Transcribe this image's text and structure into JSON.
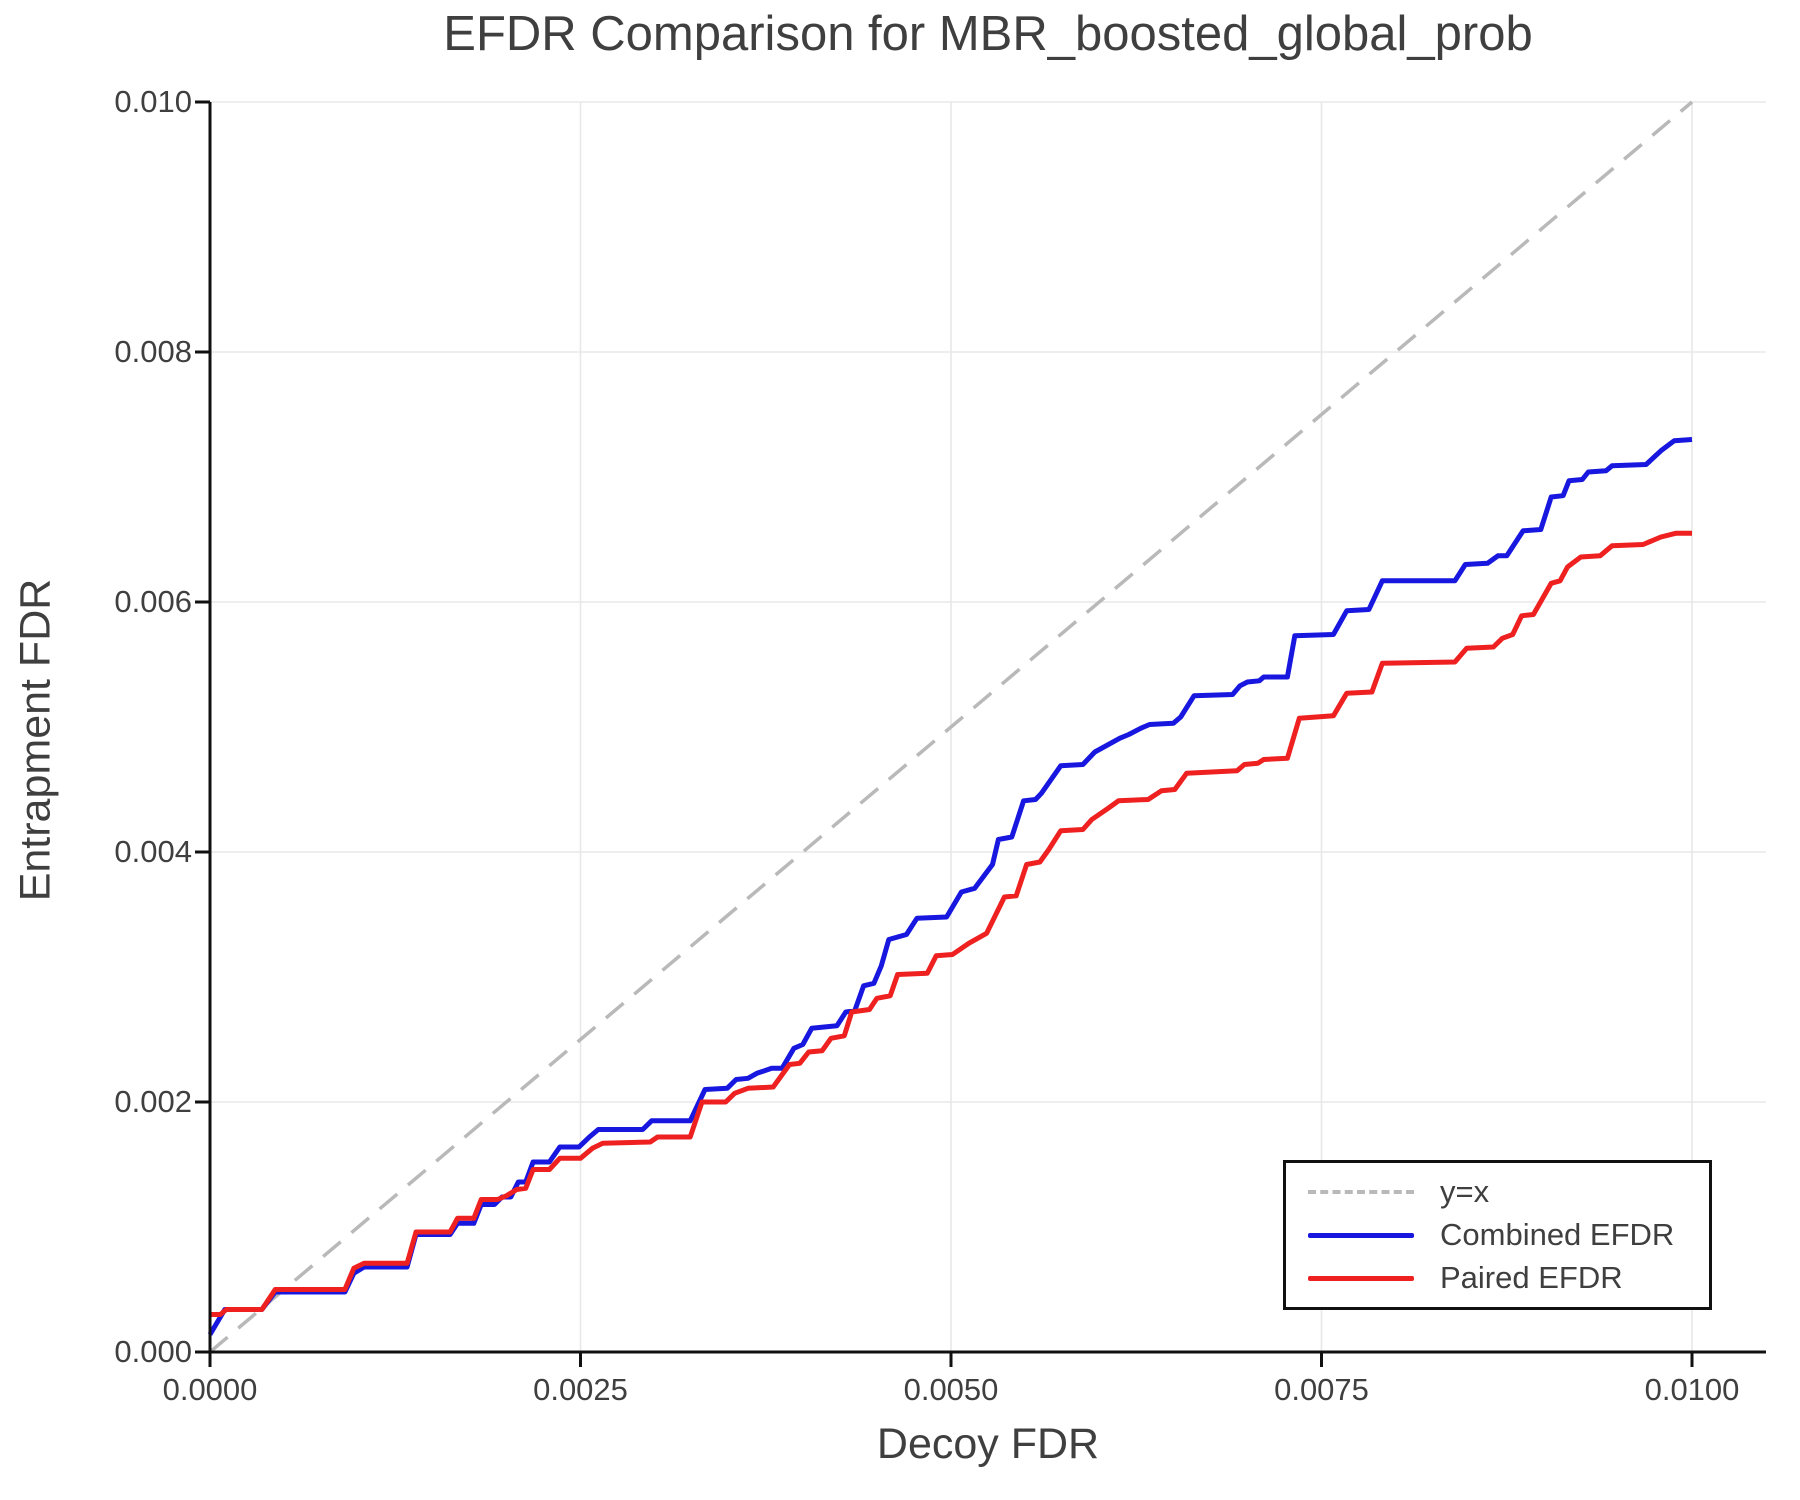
{
  "title": "EFDR Comparison for MBR_boosted_global_prob",
  "axes": {
    "xlabel": "Decoy FDR",
    "ylabel": "Entrapment FDR",
    "x_ticks": [
      {
        "value": 0.0,
        "label": "0.0000"
      },
      {
        "value": 0.0025,
        "label": "0.0025"
      },
      {
        "value": 0.005,
        "label": "0.0050"
      },
      {
        "value": 0.0075,
        "label": "0.0075"
      },
      {
        "value": 0.01,
        "label": "0.0100"
      }
    ],
    "y_ticks": [
      {
        "value": 0.0,
        "label": "0.000"
      },
      {
        "value": 0.002,
        "label": "0.002"
      },
      {
        "value": 0.004,
        "label": "0.004"
      },
      {
        "value": 0.006,
        "label": "0.006"
      },
      {
        "value": 0.008,
        "label": "0.008"
      },
      {
        "value": 0.01,
        "label": "0.010"
      }
    ]
  },
  "legend": {
    "position": "lower right",
    "entries": [
      {
        "label": "y=x",
        "style": "dashed",
        "color": "#b9b9b9"
      },
      {
        "label": "Combined EFDR",
        "style": "solid",
        "color": "#1717e0"
      },
      {
        "label": "Paired EFDR",
        "style": "solid",
        "color": "#ee2020"
      }
    ]
  },
  "colors": {
    "combined": "#1717e0",
    "paired": "#ee2020",
    "reference": "#b9b9b9",
    "grid": "#e8e8e8",
    "spine": "#111111",
    "text": "#3f3f3f"
  },
  "chart_data": {
    "type": "line",
    "title": "EFDR Comparison for MBR_boosted_global_prob",
    "xlabel": "Decoy FDR",
    "ylabel": "Entrapment FDR",
    "xlim": [
      0.0,
      0.0105
    ],
    "ylim": [
      0.0,
      0.01
    ],
    "grid": true,
    "legend_position": "lower right",
    "series": [
      {
        "name": "y=x",
        "color": "#b9b9b9",
        "style": "dashed",
        "points": [
          [
            0.0,
            0.0
          ],
          [
            0.01,
            0.01
          ]
        ]
      },
      {
        "name": "Combined EFDR",
        "color": "#1717e0",
        "style": "solid",
        "points": [
          [
            0.0,
            0.00014
          ],
          [
            0.0001,
            0.00034
          ],
          [
            0.00035,
            0.00034
          ],
          [
            0.00044,
            0.00048
          ],
          [
            0.00091,
            0.00048
          ],
          [
            0.00097,
            0.00063
          ],
          [
            0.00104,
            0.00068
          ],
          [
            0.00133,
            0.00068
          ],
          [
            0.00139,
            0.00094
          ],
          [
            0.00162,
            0.00094
          ],
          [
            0.00167,
            0.00103
          ],
          [
            0.00178,
            0.00103
          ],
          [
            0.00183,
            0.00118
          ],
          [
            0.00192,
            0.00118
          ],
          [
            0.00197,
            0.00124
          ],
          [
            0.00203,
            0.00124
          ],
          [
            0.00208,
            0.00136
          ],
          [
            0.00213,
            0.00136
          ],
          [
            0.00218,
            0.00152
          ],
          [
            0.00229,
            0.00152
          ],
          [
            0.00236,
            0.00164
          ],
          [
            0.00249,
            0.00164
          ],
          [
            0.00256,
            0.00172
          ],
          [
            0.00262,
            0.00178
          ],
          [
            0.00292,
            0.00178
          ],
          [
            0.00298,
            0.00185
          ],
          [
            0.00324,
            0.00185
          ],
          [
            0.00334,
            0.0021
          ],
          [
            0.00349,
            0.00211
          ],
          [
            0.00355,
            0.00218
          ],
          [
            0.00363,
            0.00219
          ],
          [
            0.00369,
            0.00223
          ],
          [
            0.00379,
            0.00227
          ],
          [
            0.00386,
            0.00227
          ],
          [
            0.00394,
            0.00243
          ],
          [
            0.004,
            0.00246
          ],
          [
            0.00406,
            0.00259
          ],
          [
            0.00423,
            0.00261
          ],
          [
            0.00429,
            0.00272
          ],
          [
            0.00435,
            0.00273
          ],
          [
            0.00441,
            0.00293
          ],
          [
            0.00448,
            0.00295
          ],
          [
            0.00453,
            0.00309
          ],
          [
            0.00458,
            0.0033
          ],
          [
            0.0047,
            0.00334
          ],
          [
            0.00477,
            0.00347
          ],
          [
            0.00497,
            0.00348
          ],
          [
            0.00507,
            0.00368
          ],
          [
            0.00516,
            0.00371
          ],
          [
            0.00528,
            0.0039
          ],
          [
            0.00532,
            0.0041
          ],
          [
            0.00541,
            0.00412
          ],
          [
            0.00549,
            0.00441
          ],
          [
            0.00557,
            0.00442
          ],
          [
            0.00561,
            0.00447
          ],
          [
            0.00574,
            0.00469
          ],
          [
            0.00589,
            0.0047
          ],
          [
            0.00597,
            0.0048
          ],
          [
            0.00614,
            0.00491
          ],
          [
            0.0062,
            0.00494
          ],
          [
            0.00628,
            0.00499
          ],
          [
            0.00634,
            0.00502
          ],
          [
            0.0065,
            0.00503
          ],
          [
            0.00655,
            0.00508
          ],
          [
            0.00664,
            0.00525
          ],
          [
            0.0069,
            0.00526
          ],
          [
            0.00695,
            0.00533
          ],
          [
            0.007,
            0.00536
          ],
          [
            0.00708,
            0.00537
          ],
          [
            0.00711,
            0.0054
          ],
          [
            0.00727,
            0.0054
          ],
          [
            0.00732,
            0.00573
          ],
          [
            0.00758,
            0.00574
          ],
          [
            0.00767,
            0.00593
          ],
          [
            0.00782,
            0.00594
          ],
          [
            0.00791,
            0.00617
          ],
          [
            0.0084,
            0.00617
          ],
          [
            0.00847,
            0.0063
          ],
          [
            0.00862,
            0.00631
          ],
          [
            0.00869,
            0.00637
          ],
          [
            0.00875,
            0.00637
          ],
          [
            0.00886,
            0.00657
          ],
          [
            0.00898,
            0.00658
          ],
          [
            0.00905,
            0.00684
          ],
          [
            0.00913,
            0.00685
          ],
          [
            0.00917,
            0.00697
          ],
          [
            0.00926,
            0.00698
          ],
          [
            0.0093,
            0.00704
          ],
          [
            0.00942,
            0.00705
          ],
          [
            0.00946,
            0.00709
          ],
          [
            0.00969,
            0.0071
          ],
          [
            0.00979,
            0.00721
          ],
          [
            0.00988,
            0.00729
          ],
          [
            0.01,
            0.0073
          ]
        ]
      },
      {
        "name": "Paired EFDR",
        "color": "#ee2020",
        "style": "solid",
        "points": [
          [
            0.0,
            0.0003
          ],
          [
            7e-05,
            0.0003
          ],
          [
            0.00011,
            0.00034
          ],
          [
            0.00035,
            0.00034
          ],
          [
            0.00044,
            0.0005
          ],
          [
            0.00091,
            0.0005
          ],
          [
            0.00097,
            0.00067
          ],
          [
            0.00104,
            0.00071
          ],
          [
            0.00133,
            0.00071
          ],
          [
            0.00139,
            0.00096
          ],
          [
            0.00162,
            0.00096
          ],
          [
            0.00167,
            0.00107
          ],
          [
            0.00178,
            0.00107
          ],
          [
            0.00183,
            0.00122
          ],
          [
            0.00194,
            0.00122
          ],
          [
            0.002,
            0.00125
          ],
          [
            0.00207,
            0.0013
          ],
          [
            0.00213,
            0.00131
          ],
          [
            0.00218,
            0.00146
          ],
          [
            0.00229,
            0.00146
          ],
          [
            0.00236,
            0.00155
          ],
          [
            0.0025,
            0.00155
          ],
          [
            0.00258,
            0.00163
          ],
          [
            0.00265,
            0.00167
          ],
          [
            0.00297,
            0.00168
          ],
          [
            0.00302,
            0.00172
          ],
          [
            0.00324,
            0.00172
          ],
          [
            0.00332,
            0.002
          ],
          [
            0.00348,
            0.002
          ],
          [
            0.00354,
            0.00207
          ],
          [
            0.00363,
            0.00211
          ],
          [
            0.0038,
            0.00212
          ],
          [
            0.00391,
            0.0023
          ],
          [
            0.00398,
            0.00231
          ],
          [
            0.00404,
            0.0024
          ],
          [
            0.00413,
            0.00241
          ],
          [
            0.00419,
            0.00251
          ],
          [
            0.00428,
            0.00253
          ],
          [
            0.00433,
            0.00272
          ],
          [
            0.00445,
            0.00274
          ],
          [
            0.0045,
            0.00283
          ],
          [
            0.00459,
            0.00285
          ],
          [
            0.00464,
            0.00302
          ],
          [
            0.00484,
            0.00303
          ],
          [
            0.0049,
            0.00317
          ],
          [
            0.00501,
            0.00318
          ],
          [
            0.00512,
            0.00327
          ],
          [
            0.00524,
            0.00335
          ],
          [
            0.00536,
            0.00364
          ],
          [
            0.00544,
            0.00365
          ],
          [
            0.00551,
            0.0039
          ],
          [
            0.0056,
            0.00392
          ],
          [
            0.00566,
            0.00402
          ],
          [
            0.00574,
            0.00417
          ],
          [
            0.00589,
            0.00418
          ],
          [
            0.00595,
            0.00426
          ],
          [
            0.00606,
            0.00435
          ],
          [
            0.00613,
            0.00441
          ],
          [
            0.00633,
            0.00442
          ],
          [
            0.00642,
            0.00449
          ],
          [
            0.00651,
            0.0045
          ],
          [
            0.00659,
            0.00463
          ],
          [
            0.00693,
            0.00465
          ],
          [
            0.00698,
            0.0047
          ],
          [
            0.00707,
            0.00471
          ],
          [
            0.00711,
            0.00474
          ],
          [
            0.00727,
            0.00475
          ],
          [
            0.00735,
            0.00507
          ],
          [
            0.00758,
            0.00509
          ],
          [
            0.00767,
            0.00527
          ],
          [
            0.00784,
            0.00528
          ],
          [
            0.00791,
            0.00551
          ],
          [
            0.0084,
            0.00552
          ],
          [
            0.00848,
            0.00563
          ],
          [
            0.00866,
            0.00564
          ],
          [
            0.00872,
            0.00571
          ],
          [
            0.00879,
            0.00574
          ],
          [
            0.00885,
            0.00589
          ],
          [
            0.00893,
            0.0059
          ],
          [
            0.00905,
            0.00615
          ],
          [
            0.00911,
            0.00617
          ],
          [
            0.00916,
            0.00628
          ],
          [
            0.00925,
            0.00636
          ],
          [
            0.00938,
            0.00637
          ],
          [
            0.00946,
            0.00645
          ],
          [
            0.00967,
            0.00646
          ],
          [
            0.00979,
            0.00652
          ],
          [
            0.00989,
            0.00655
          ],
          [
            0.01,
            0.00655
          ]
        ]
      }
    ]
  }
}
